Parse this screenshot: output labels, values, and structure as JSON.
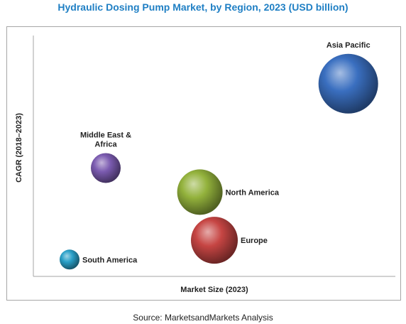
{
  "chart_data": {
    "type": "scatter",
    "title": "Hydraulic Dosing Pump Market, by Region, 2023 (USD billion)",
    "xlabel": "Market Size (2023)",
    "ylabel": "CAGR (2018–2023)",
    "source": "Source: MarketsandMarkets Analysis",
    "xlim": [
      0,
      100
    ],
    "ylim": [
      0,
      100
    ],
    "grid": false,
    "legend": "none",
    "series": [
      {
        "label": "Asia Pacific",
        "x": 87,
        "y": 80,
        "size": 42,
        "color": "#3a6fc0",
        "label_pos": "above"
      },
      {
        "label": "Middle East & Africa",
        "x": 20,
        "y": 45,
        "size": 21,
        "color": "#7b5bb0",
        "label_pos": "above"
      },
      {
        "label": "North America",
        "x": 46,
        "y": 35,
        "size": 32,
        "color": "#93b23c",
        "label_pos": "right"
      },
      {
        "label": "Europe",
        "x": 50,
        "y": 15,
        "size": 33,
        "color": "#c64543",
        "label_pos": "right"
      },
      {
        "label": "South America",
        "x": 10,
        "y": 7,
        "size": 14,
        "color": "#2aa0c8",
        "label_pos": "right"
      }
    ]
  }
}
